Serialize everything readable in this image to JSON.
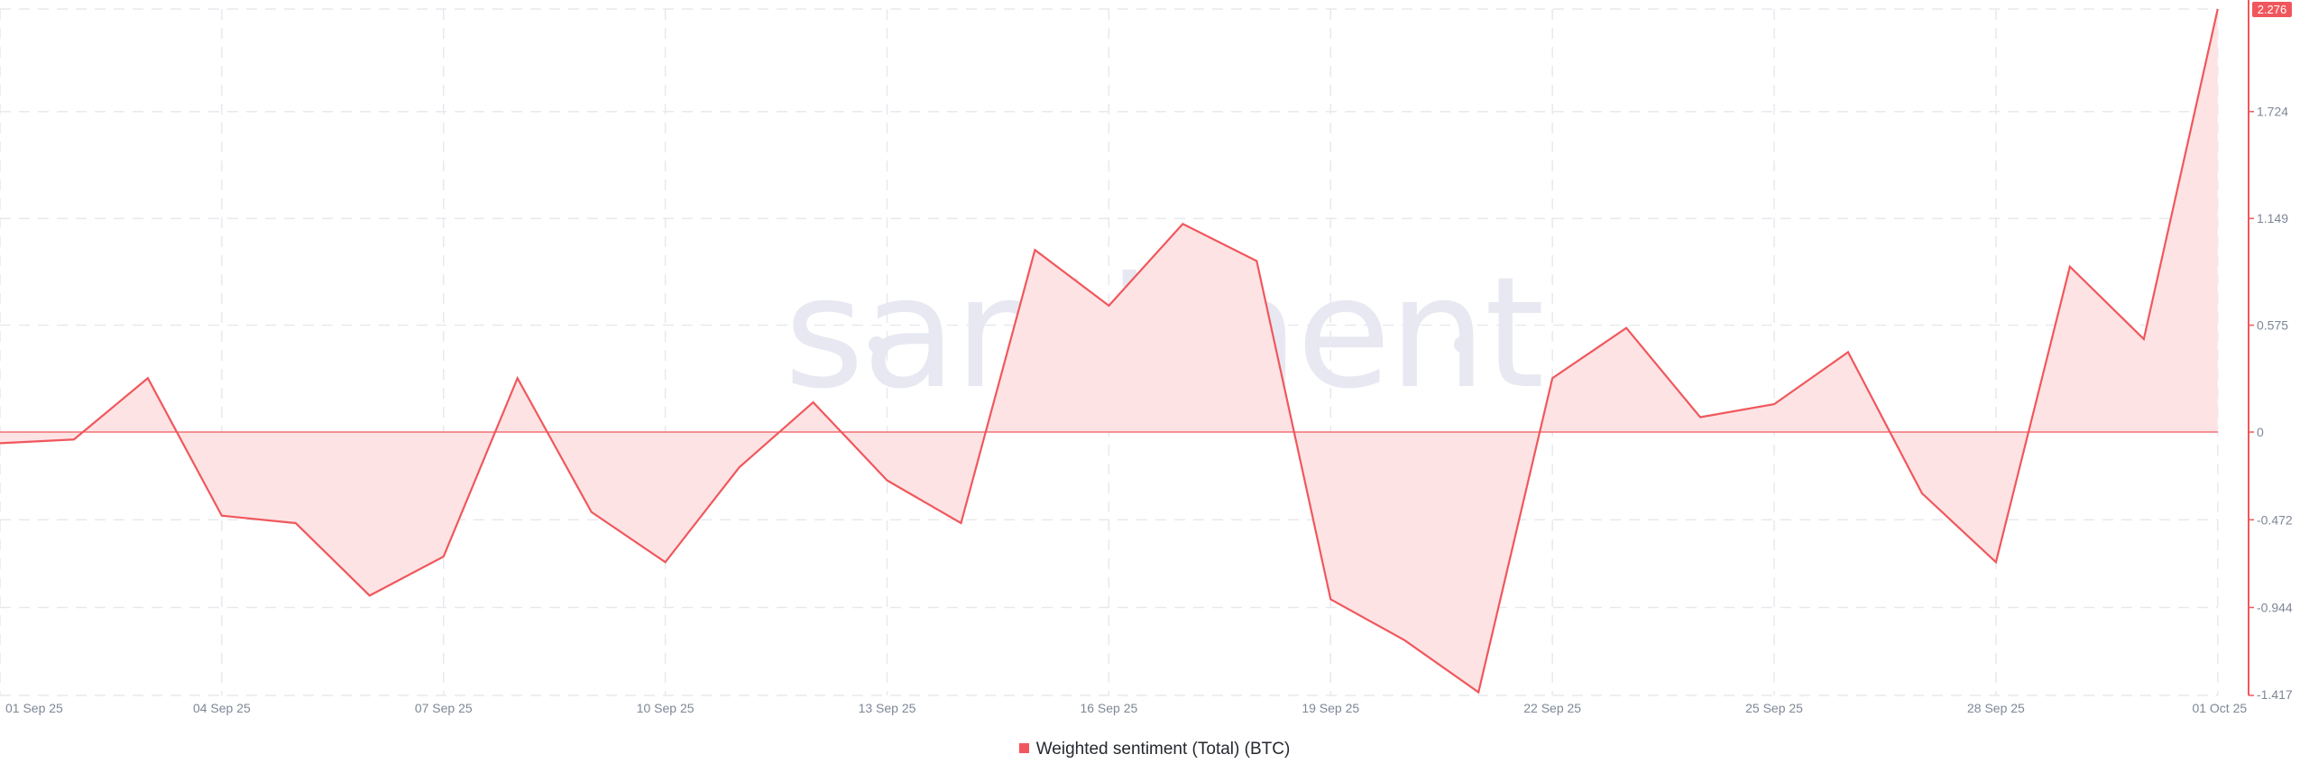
{
  "chart_data": {
    "type": "area",
    "title": "",
    "xlabel": "",
    "ylabel": "",
    "watermark": "santiment",
    "x_tick_labels": [
      "01 Sep 25",
      "04 Sep 25",
      "07 Sep 25",
      "10 Sep 25",
      "13 Sep 25",
      "16 Sep 25",
      "19 Sep 25",
      "22 Sep 25",
      "25 Sep 25",
      "28 Sep 25",
      "01 Oct 25"
    ],
    "y_tick_labels": [
      "1.724",
      "1.149",
      "0.575",
      "0",
      "-0.472",
      "-0.944",
      "-1.417"
    ],
    "y_ticks": [
      1.724,
      1.149,
      0.575,
      0,
      -0.472,
      -0.944,
      -1.417
    ],
    "ylim": [
      -1.417,
      2.276
    ],
    "grid": true,
    "legend_position": "bottom-center",
    "series": [
      {
        "name": "Weighted sentiment (Total) (BTC)",
        "color": "#f0575c",
        "fill_color": "#fde3e4",
        "last_value_label": "2.276",
        "x": [
          "01 Sep 25",
          "02 Sep 25",
          "03 Sep 25",
          "04 Sep 25",
          "05 Sep 25",
          "06 Sep 25",
          "07 Sep 25",
          "08 Sep 25",
          "09 Sep 25",
          "10 Sep 25",
          "11 Sep 25",
          "12 Sep 25",
          "13 Sep 25",
          "14 Sep 25",
          "15 Sep 25",
          "16 Sep 25",
          "17 Sep 25",
          "18 Sep 25",
          "19 Sep 25",
          "20 Sep 25",
          "21 Sep 25",
          "22 Sep 25",
          "23 Sep 25",
          "24 Sep 25",
          "25 Sep 25",
          "26 Sep 25",
          "27 Sep 25",
          "28 Sep 25",
          "29 Sep 25",
          "30 Sep 25",
          "01 Oct 25"
        ],
        "values": [
          -0.06,
          -0.04,
          0.29,
          -0.45,
          -0.49,
          -0.88,
          -0.67,
          0.29,
          -0.43,
          -0.7,
          -0.19,
          0.16,
          -0.26,
          -0.49,
          0.98,
          0.68,
          1.12,
          0.92,
          -0.9,
          -1.12,
          -1.4,
          0.29,
          0.56,
          0.08,
          0.15,
          0.43,
          -0.33,
          -0.7,
          0.89,
          0.5,
          2.276
        ]
      }
    ]
  }
}
